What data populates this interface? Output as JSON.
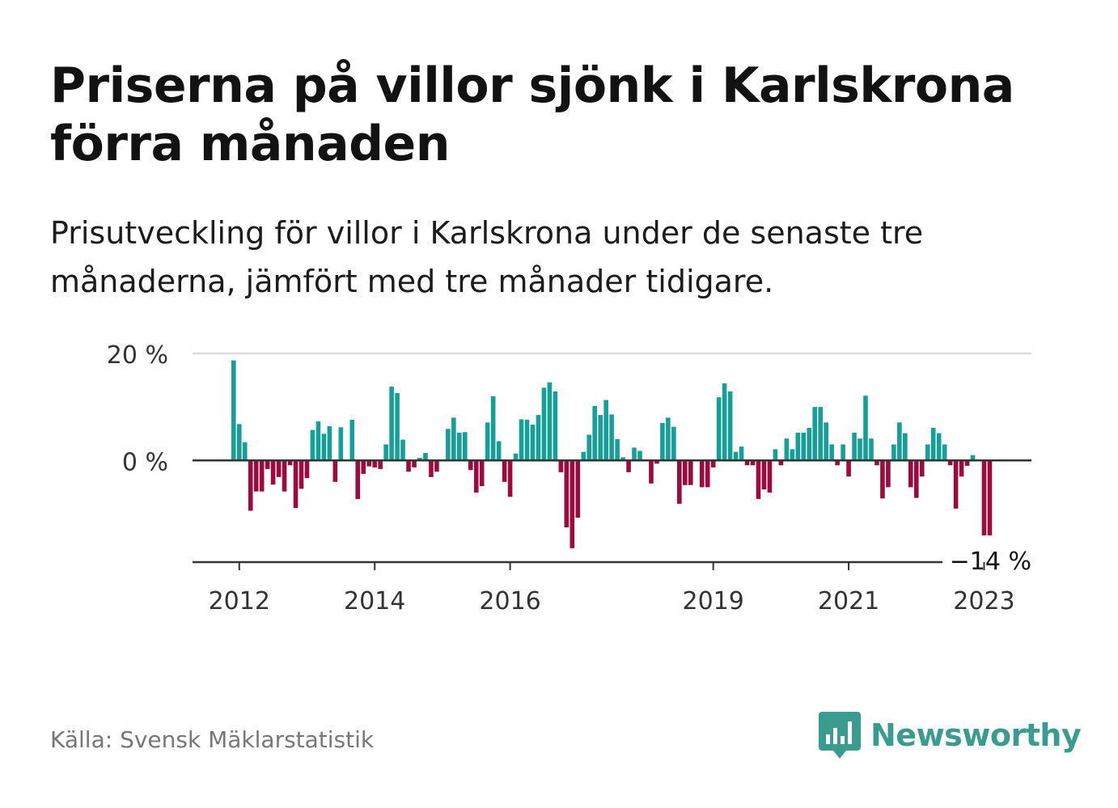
{
  "title": "Priserna på villor sjönk i Karlskrona förra månaden",
  "subtitle": "Prisutveckling för villor i Karlskrona under de senaste tre månaderna, jämfört med tre månader tidigare.",
  "source": "Källa: Svensk Mäklarstatistik",
  "brand": {
    "name": "Newsworthy",
    "color": "#3a9c8e",
    "icon": "bar-chart-speech-icon"
  },
  "colors": {
    "positive": "#14a096",
    "negative": "#9c0a3e",
    "grid": "#dddddd",
    "axis": "#333333",
    "label": "#333333"
  },
  "chart_data": {
    "type": "bar",
    "title": "",
    "xlabel": "",
    "ylabel": "",
    "ylim": [
      -19,
      20
    ],
    "y_ticks": [
      {
        "value": 20,
        "label": "20 %"
      },
      {
        "value": 0,
        "label": "0 %"
      }
    ],
    "x_ticks": [
      {
        "value": "2012-01",
        "label": "2012"
      },
      {
        "value": "2014-01",
        "label": "2014"
      },
      {
        "value": "2016-01",
        "label": "2016"
      },
      {
        "value": "2019-01",
        "label": "2019"
      },
      {
        "value": "2021-01",
        "label": "2021"
      },
      {
        "value": "2023-01",
        "label": "2023"
      }
    ],
    "annotation": {
      "text": "−14 %",
      "at": "2023-01"
    },
    "start": "2011-12",
    "grid": true,
    "legend": "none",
    "values": [
      18.7,
      6.8,
      3.4,
      -9.4,
      -5.8,
      -5.8,
      -1.6,
      -4.5,
      -3.1,
      -5.8,
      -0.9,
      -8.9,
      -5.3,
      -3.3,
      5.7,
      7.3,
      5.0,
      6.4,
      -4.0,
      6.2,
      0,
      7.6,
      -7.2,
      -2.5,
      -1.1,
      -1.3,
      -1.6,
      3.0,
      13.8,
      12.6,
      3.9,
      -2.1,
      -1.3,
      0.5,
      1.4,
      -3.1,
      -2.1,
      0,
      5.9,
      8.0,
      5.2,
      5.3,
      -1.8,
      -6.0,
      -4.8,
      7.1,
      12.0,
      3.6,
      -4.0,
      -6.8,
      1.3,
      7.7,
      7.6,
      6.7,
      8.5,
      13.6,
      14.6,
      12.9,
      -2.2,
      -12.5,
      -16.4,
      -10.7,
      1.6,
      4.8,
      10.2,
      8.5,
      11.3,
      8.6,
      4.0,
      0.6,
      -2.2,
      2.4,
      1.8,
      0,
      -4.3,
      -0.6,
      7.0,
      8.0,
      6.3,
      -8.1,
      -4.6,
      -4.6,
      0,
      -5.0,
      -5.0,
      -1.3,
      11.8,
      14.4,
      12.9,
      1.6,
      2.6,
      -0.9,
      -0.9,
      -7.2,
      -5.4,
      -6.0,
      2.1,
      -0.9,
      4.1,
      2.1,
      5.2,
      5.2,
      6.1,
      10.0,
      10.0,
      7.1,
      3.0,
      -0.9,
      3.0,
      -3.0,
      5.2,
      4.1,
      12.1,
      4.1,
      -0.9,
      -7.1,
      -5.0,
      3.0,
      7.1,
      5.1,
      -5.0,
      -7.0,
      -3.0,
      3.0,
      6.1,
      5.1,
      3.0,
      -0.9,
      -9.0,
      -3.0,
      -1.0,
      1.0,
      0,
      -14.0,
      -14.0
    ]
  }
}
